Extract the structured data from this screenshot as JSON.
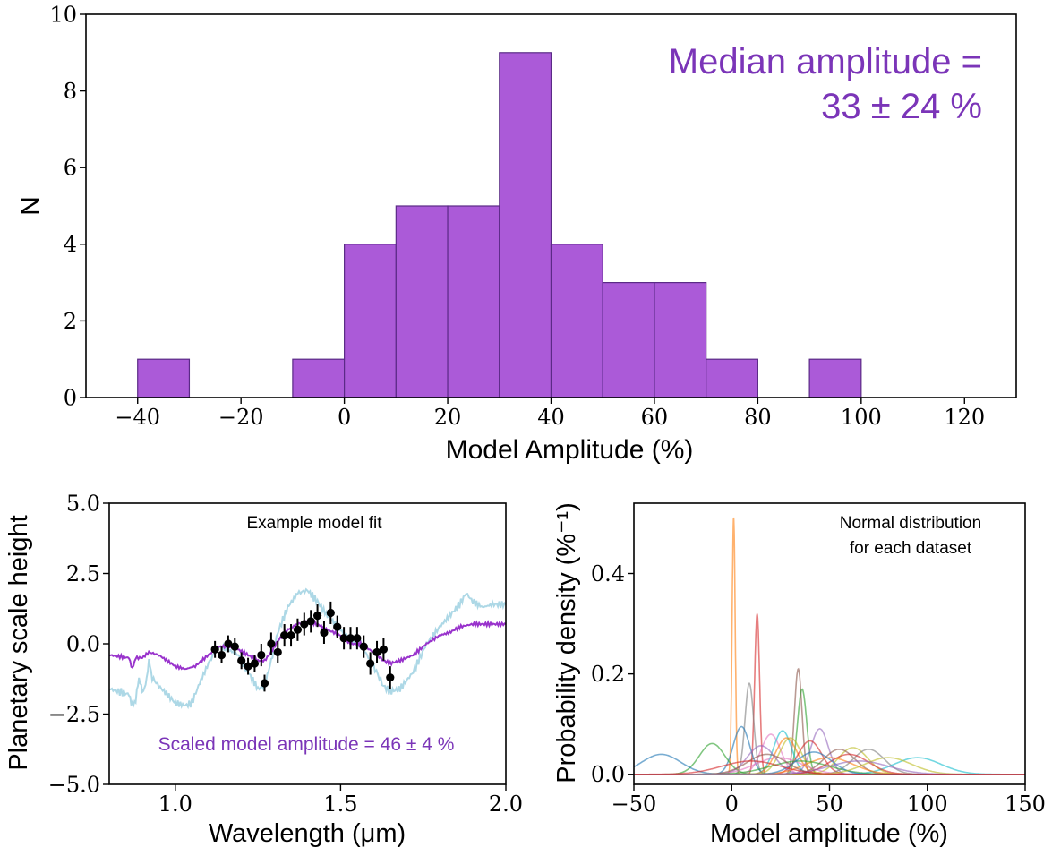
{
  "chart_data": [
    {
      "type": "bar",
      "title": "",
      "xlabel": "Model Amplitude (%)",
      "ylabel": "N",
      "xlim": [
        -50,
        130
      ],
      "ylim": [
        0,
        10
      ],
      "xticks": [
        -40,
        -20,
        0,
        20,
        40,
        60,
        80,
        100,
        120
      ],
      "xtick_labels": [
        "−40",
        "−20",
        "0",
        "20",
        "40",
        "60",
        "80",
        "100",
        "120"
      ],
      "yticks": [
        0,
        2,
        4,
        6,
        8,
        10
      ],
      "ytick_labels": [
        "0",
        "2",
        "4",
        "6",
        "8",
        "10"
      ],
      "bin_edges": [
        -40,
        -30,
        -20,
        -10,
        0,
        10,
        20,
        30,
        40,
        50,
        60,
        70,
        80,
        90,
        100
      ],
      "values": [
        1,
        0,
        0,
        1,
        4,
        5,
        5,
        9,
        4,
        3,
        3,
        1,
        0,
        1
      ],
      "color": "#ab5ad8",
      "edge_color": "#5a2a86",
      "annotation_line1": "Median amplitude =",
      "annotation_line2": "33 ± 24 %",
      "annotation_color": "#7b35b8",
      "grid": false
    },
    {
      "type": "line",
      "title": "Example model fit",
      "xlabel": "Wavelength (μm)",
      "ylabel": "Planetary scale height",
      "xlim": [
        0.8,
        2.0
      ],
      "ylim": [
        -5.0,
        5.0
      ],
      "xticks": [
        1.0,
        1.5,
        2.0
      ],
      "xtick_labels": [
        "1.0",
        "1.5",
        "2.0"
      ],
      "yticks": [
        -5.0,
        -2.5,
        0.0,
        2.5,
        5.0
      ],
      "ytick_labels": [
        "−5.0",
        "−2.5",
        "0.0",
        "2.5",
        "5.0"
      ],
      "annotation": "Scaled model amplitude = 46 ± 4 %",
      "annotation_color": "#7b35b8",
      "model_color": "#add8e6",
      "scaled_color": "#9933cc",
      "model_curve": {
        "x": [
          0.8,
          0.86,
          0.87,
          0.88,
          0.89,
          0.9,
          0.91,
          0.92,
          0.93,
          0.95,
          1.0,
          1.03,
          1.05,
          1.07,
          1.1,
          1.13,
          1.16,
          1.19,
          1.22,
          1.25,
          1.27,
          1.29,
          1.31,
          1.34,
          1.37,
          1.4,
          1.43,
          1.46,
          1.5,
          1.53,
          1.56,
          1.6,
          1.63,
          1.65,
          1.68,
          1.72,
          1.76,
          1.8,
          1.83,
          1.86,
          1.88,
          1.9,
          1.93,
          1.96,
          2.0
        ],
        "y": [
          -1.6,
          -1.8,
          -2.2,
          -2.0,
          -1.2,
          -1.7,
          -1.5,
          -0.6,
          -1.2,
          -1.5,
          -2.1,
          -2.2,
          -2.1,
          -1.5,
          -0.7,
          -0.1,
          -0.2,
          -0.4,
          -1.0,
          -1.6,
          -1.5,
          -0.6,
          0.4,
          1.3,
          1.8,
          1.9,
          1.5,
          1.0,
          0.5,
          0.1,
          0.0,
          -0.8,
          -1.5,
          -1.7,
          -1.6,
          -1.0,
          0.0,
          0.6,
          1.0,
          1.4,
          1.8,
          1.5,
          1.3,
          1.4,
          1.4
        ]
      },
      "scaled_curve": {
        "x": [
          0.8,
          0.86,
          0.87,
          0.88,
          0.9,
          0.92,
          0.95,
          1.0,
          1.03,
          1.06,
          1.1,
          1.13,
          1.16,
          1.19,
          1.22,
          1.25,
          1.27,
          1.29,
          1.31,
          1.34,
          1.37,
          1.4,
          1.43,
          1.46,
          1.5,
          1.53,
          1.56,
          1.6,
          1.63,
          1.65,
          1.68,
          1.72,
          1.76,
          1.8,
          1.83,
          1.86,
          1.9,
          1.95,
          2.0
        ],
        "y": [
          -0.4,
          -0.5,
          -0.9,
          -0.5,
          -0.5,
          -0.3,
          -0.4,
          -0.8,
          -0.9,
          -0.8,
          -0.4,
          -0.1,
          -0.1,
          -0.2,
          -0.4,
          -0.6,
          -0.6,
          -0.3,
          0.1,
          0.5,
          0.7,
          0.8,
          0.7,
          0.5,
          0.3,
          0.0,
          0.0,
          -0.3,
          -0.6,
          -0.7,
          -0.6,
          -0.4,
          0.0,
          0.3,
          0.4,
          0.6,
          0.7,
          0.7,
          0.7
        ]
      },
      "data_points": {
        "x": [
          1.12,
          1.14,
          1.16,
          1.18,
          1.2,
          1.22,
          1.24,
          1.26,
          1.27,
          1.29,
          1.31,
          1.33,
          1.35,
          1.37,
          1.39,
          1.41,
          1.43,
          1.45,
          1.47,
          1.49,
          1.51,
          1.53,
          1.55,
          1.57,
          1.59,
          1.61,
          1.63,
          1.65
        ],
        "y": [
          -0.2,
          -0.4,
          0.0,
          -0.1,
          -0.6,
          -0.8,
          -0.7,
          -0.4,
          -1.4,
          0.0,
          -0.3,
          0.3,
          0.3,
          0.5,
          0.7,
          0.8,
          1.0,
          0.4,
          1.1,
          0.6,
          0.2,
          0.2,
          0.2,
          -0.1,
          -0.7,
          -0.3,
          -0.2,
          -1.2
        ],
        "yerr": [
          0.3,
          0.3,
          0.3,
          0.3,
          0.3,
          0.3,
          0.3,
          0.4,
          0.3,
          0.4,
          0.4,
          0.4,
          0.4,
          0.4,
          0.4,
          0.4,
          0.4,
          0.4,
          0.4,
          0.4,
          0.4,
          0.4,
          0.4,
          0.4,
          0.4,
          0.4,
          0.4,
          0.4
        ]
      },
      "grid": false
    },
    {
      "type": "line",
      "title": "",
      "xlabel": "Model amplitude (%)",
      "ylabel": "Probability density (%⁻¹)",
      "xlim": [
        -50,
        150
      ],
      "ylim": [
        -0.02,
        0.54
      ],
      "xticks": [
        -50,
        0,
        50,
        100,
        150
      ],
      "xtick_labels": [
        "−50",
        "0",
        "50",
        "100",
        "150"
      ],
      "yticks": [
        0.0,
        0.2,
        0.4
      ],
      "ytick_labels": [
        "0.0",
        "0.2",
        "0.4"
      ],
      "annotation_line1": "Normal distribution",
      "annotation_line2": "for each dataset",
      "series": [
        {
          "mean": 1,
          "sd": 0.78,
          "color": "#ff7f0e"
        },
        {
          "mean": 13,
          "sd": 1.25,
          "color": "#d62728"
        },
        {
          "mean": 34,
          "sd": 1.9,
          "color": "#8c564b"
        },
        {
          "mean": 36,
          "sd": 2.35,
          "color": "#2ca02c"
        },
        {
          "mean": 9,
          "sd": 2.2,
          "color": "#7f7f7f"
        },
        {
          "mean": 5,
          "sd": 4.2,
          "color": "#1f77b4"
        },
        {
          "mean": 45,
          "sd": 4.4,
          "color": "#9467bd"
        },
        {
          "mean": 20,
          "sd": 5.0,
          "color": "#e377c2"
        },
        {
          "mean": 30,
          "sd": 5.5,
          "color": "#bcbd22"
        },
        {
          "mean": 26,
          "sd": 4.6,
          "color": "#17becf"
        },
        {
          "mean": 28,
          "sd": 5.5,
          "color": "#ff7f0e"
        },
        {
          "mean": 40,
          "sd": 6.0,
          "color": "#d62728"
        },
        {
          "mean": -10,
          "sd": 6.5,
          "color": "#2ca02c"
        },
        {
          "mean": -36,
          "sd": 10,
          "color": "#1f77b4"
        },
        {
          "mean": 62,
          "sd": 7.5,
          "color": "#bcbd22"
        },
        {
          "mean": 55,
          "sd": 8,
          "color": "#8c564b"
        },
        {
          "mean": 70,
          "sd": 8,
          "color": "#7f7f7f"
        },
        {
          "mean": 95,
          "sd": 12,
          "color": "#17becf"
        },
        {
          "mean": 15,
          "sd": 7,
          "color": "#9467bd"
        },
        {
          "mean": 24,
          "sd": 12,
          "color": "#e377c2"
        },
        {
          "mean": 50,
          "sd": 12,
          "color": "#ff7f0e"
        },
        {
          "mean": 35,
          "sd": 15,
          "color": "#2ca02c"
        },
        {
          "mean": 60,
          "sd": 10,
          "color": "#d62728"
        },
        {
          "mean": 18,
          "sd": 10,
          "color": "#8c564b"
        },
        {
          "mean": 42,
          "sd": 9,
          "color": "#1f77b4"
        },
        {
          "mean": 80,
          "sd": 12,
          "color": "#bcbd22"
        },
        {
          "mean": 65,
          "sd": 15,
          "color": "#9467bd"
        },
        {
          "mean": 10,
          "sd": 15,
          "color": "#d62728"
        }
      ],
      "grid": false
    }
  ]
}
